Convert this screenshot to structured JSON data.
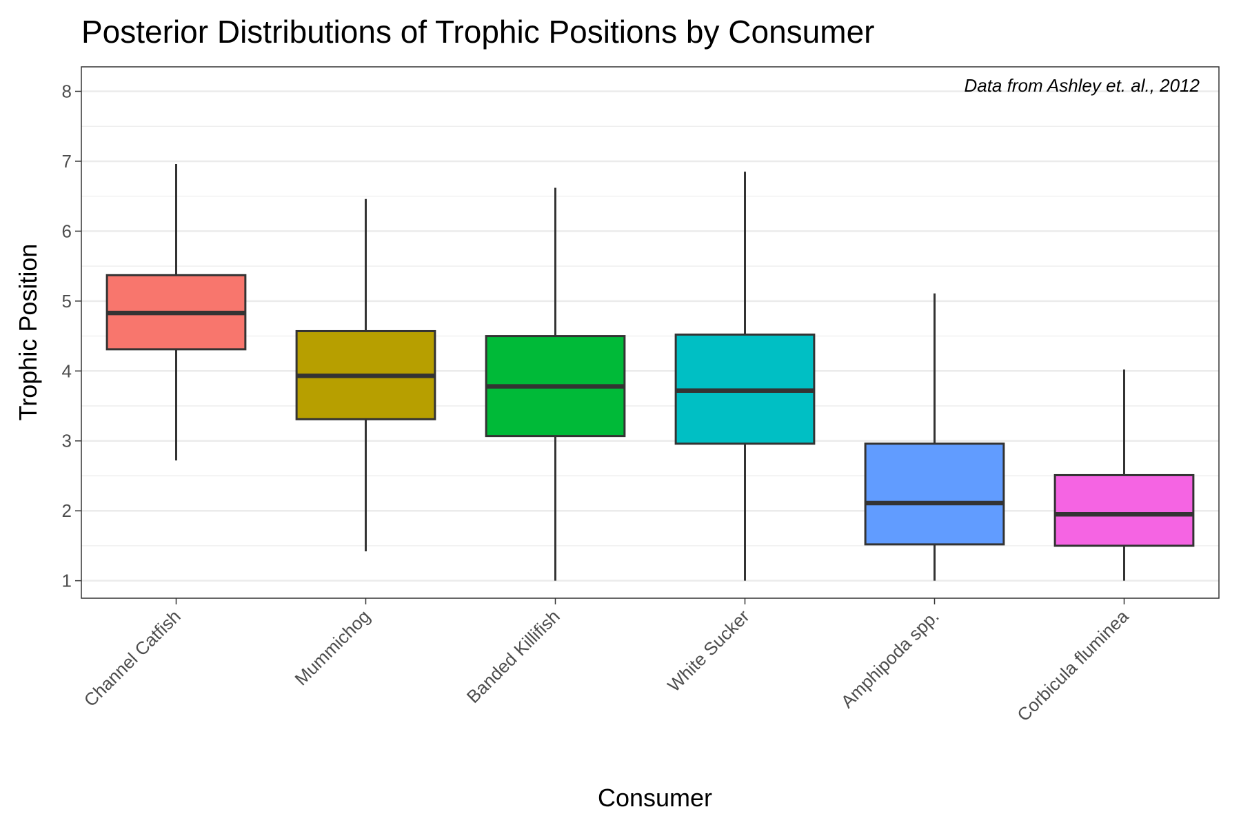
{
  "chart_data": {
    "type": "box",
    "title": "Posterior Distributions of Trophic Positions by Consumer",
    "xlabel": "Consumer",
    "ylabel": "Trophic Position",
    "annotation": "Data from Ashley et. al., 2012",
    "ylim": [
      0.75,
      8.35
    ],
    "yticks": [
      1,
      2,
      3,
      4,
      5,
      6,
      7,
      8
    ],
    "grid": true,
    "legend": "none",
    "categories": [
      "Channel Catfish",
      "Mummichog",
      "Banded Killifish",
      "White Sucker",
      "Amphipoda spp.",
      "Corbicula fluminea"
    ],
    "boxes": [
      {
        "category": "Channel Catfish",
        "min": 2.72,
        "q1": 4.31,
        "median": 4.83,
        "q3": 5.37,
        "max": 6.96,
        "color": "#F8766D"
      },
      {
        "category": "Mummichog",
        "min": 1.42,
        "q1": 3.31,
        "median": 3.93,
        "q3": 4.57,
        "max": 6.46,
        "color": "#B79F00"
      },
      {
        "category": "Banded Killifish",
        "min": 1.0,
        "q1": 3.07,
        "median": 3.78,
        "q3": 4.5,
        "max": 6.62,
        "color": "#00BA38"
      },
      {
        "category": "White Sucker",
        "min": 1.0,
        "q1": 2.96,
        "median": 3.72,
        "q3": 4.52,
        "max": 6.85,
        "color": "#00BFC4"
      },
      {
        "category": "Amphipoda spp.",
        "min": 1.0,
        "q1": 1.52,
        "median": 2.11,
        "q3": 2.96,
        "max": 5.11,
        "color": "#619CFF"
      },
      {
        "category": "Corbicula fluminea",
        "min": 1.0,
        "q1": 1.5,
        "median": 1.95,
        "q3": 2.51,
        "max": 4.02,
        "color": "#F564E3"
      }
    ]
  }
}
